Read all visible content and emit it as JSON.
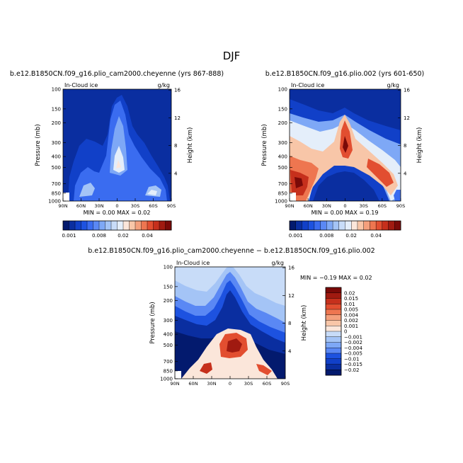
{
  "page_title": "DJF",
  "colors": {
    "blue_scale": [
      "#031a6e",
      "#0a2ea0",
      "#1140c8",
      "#1d52e0",
      "#3a6cf0",
      "#5a88f4",
      "#7ea8f6",
      "#a4c4f6",
      "#c8dcf8",
      "#e4eefa"
    ],
    "red_scale": [
      "#fbe6da",
      "#f8c6a8",
      "#f4a07c",
      "#ee7650",
      "#e24e30",
      "#c6301c",
      "#a01a10",
      "#7a0a08"
    ]
  },
  "chart_data": [
    {
      "type": "contour",
      "panel": "left",
      "title": "b.e12.B1850CN.f09_g16.plio_cam2000.cheyenne (yrs 867-888)",
      "variable_label": "In-Cloud ice",
      "units_label": "g/kg",
      "min_max_text": "MIN =    0.00   MAX =   0.02",
      "ylabel": "Pressure (mb)",
      "right_label": "Height (km)",
      "x_ticks": [
        "90N",
        "60N",
        "30N",
        "0",
        "30S",
        "60S",
        "90S"
      ],
      "y_ticks": [
        "100",
        "150",
        "200",
        "300",
        "400",
        "500",
        "700",
        "850",
        "1000"
      ],
      "height_ticks": [
        "16",
        "12",
        "8",
        "4"
      ],
      "colorbar_labels": [
        "0.001",
        "0.008",
        "0.02",
        "0.04"
      ]
    },
    {
      "type": "contour",
      "panel": "right",
      "title": "b.e12.B1850CN.f09_g16.plio.002 (yrs 601-650)",
      "variable_label": "In-Cloud ice",
      "units_label": "g/kg",
      "min_max_text": "MIN =    0.00   MAX =   0.19",
      "ylabel": "Pressure (mb)",
      "right_label": "Height (km)",
      "x_ticks": [
        "90N",
        "60N",
        "30N",
        "0",
        "30S",
        "60S",
        "90S"
      ],
      "y_ticks": [
        "100",
        "150",
        "200",
        "300",
        "400",
        "500",
        "700",
        "850",
        "1000"
      ],
      "height_ticks": [
        "16",
        "12",
        "8",
        "4"
      ],
      "colorbar_labels": [
        "0.001",
        "0.008",
        "0.02",
        "0.04"
      ]
    },
    {
      "type": "contour",
      "panel": "difference",
      "title": "b.e12.B1850CN.f09_g16.plio_cam2000.cheyenne − b.e12.B1850CN.f09_g16.plio.002",
      "variable_label": "In-Cloud ice",
      "units_label": "g/kg",
      "min_max_text": "MIN =  −0.19   MAX =   0.02",
      "ylabel": "Pressure (mb)",
      "right_label": "Height (km)",
      "x_ticks": [
        "90N",
        "60N",
        "30N",
        "0",
        "30S",
        "60S",
        "90S"
      ],
      "y_ticks": [
        "100",
        "150",
        "200",
        "300",
        "400",
        "500",
        "700",
        "850",
        "1000"
      ],
      "height_ticks": [
        "16",
        "12",
        "8",
        "4"
      ],
      "legend_levels": [
        "0.02",
        "0.015",
        "0.01",
        "0.005",
        "0.004",
        "0.002",
        "0.001",
        "0",
        "−0.001",
        "−0.002",
        "−0.004",
        "−0.005",
        "−0.01",
        "−0.015",
        "−0.02"
      ]
    }
  ]
}
